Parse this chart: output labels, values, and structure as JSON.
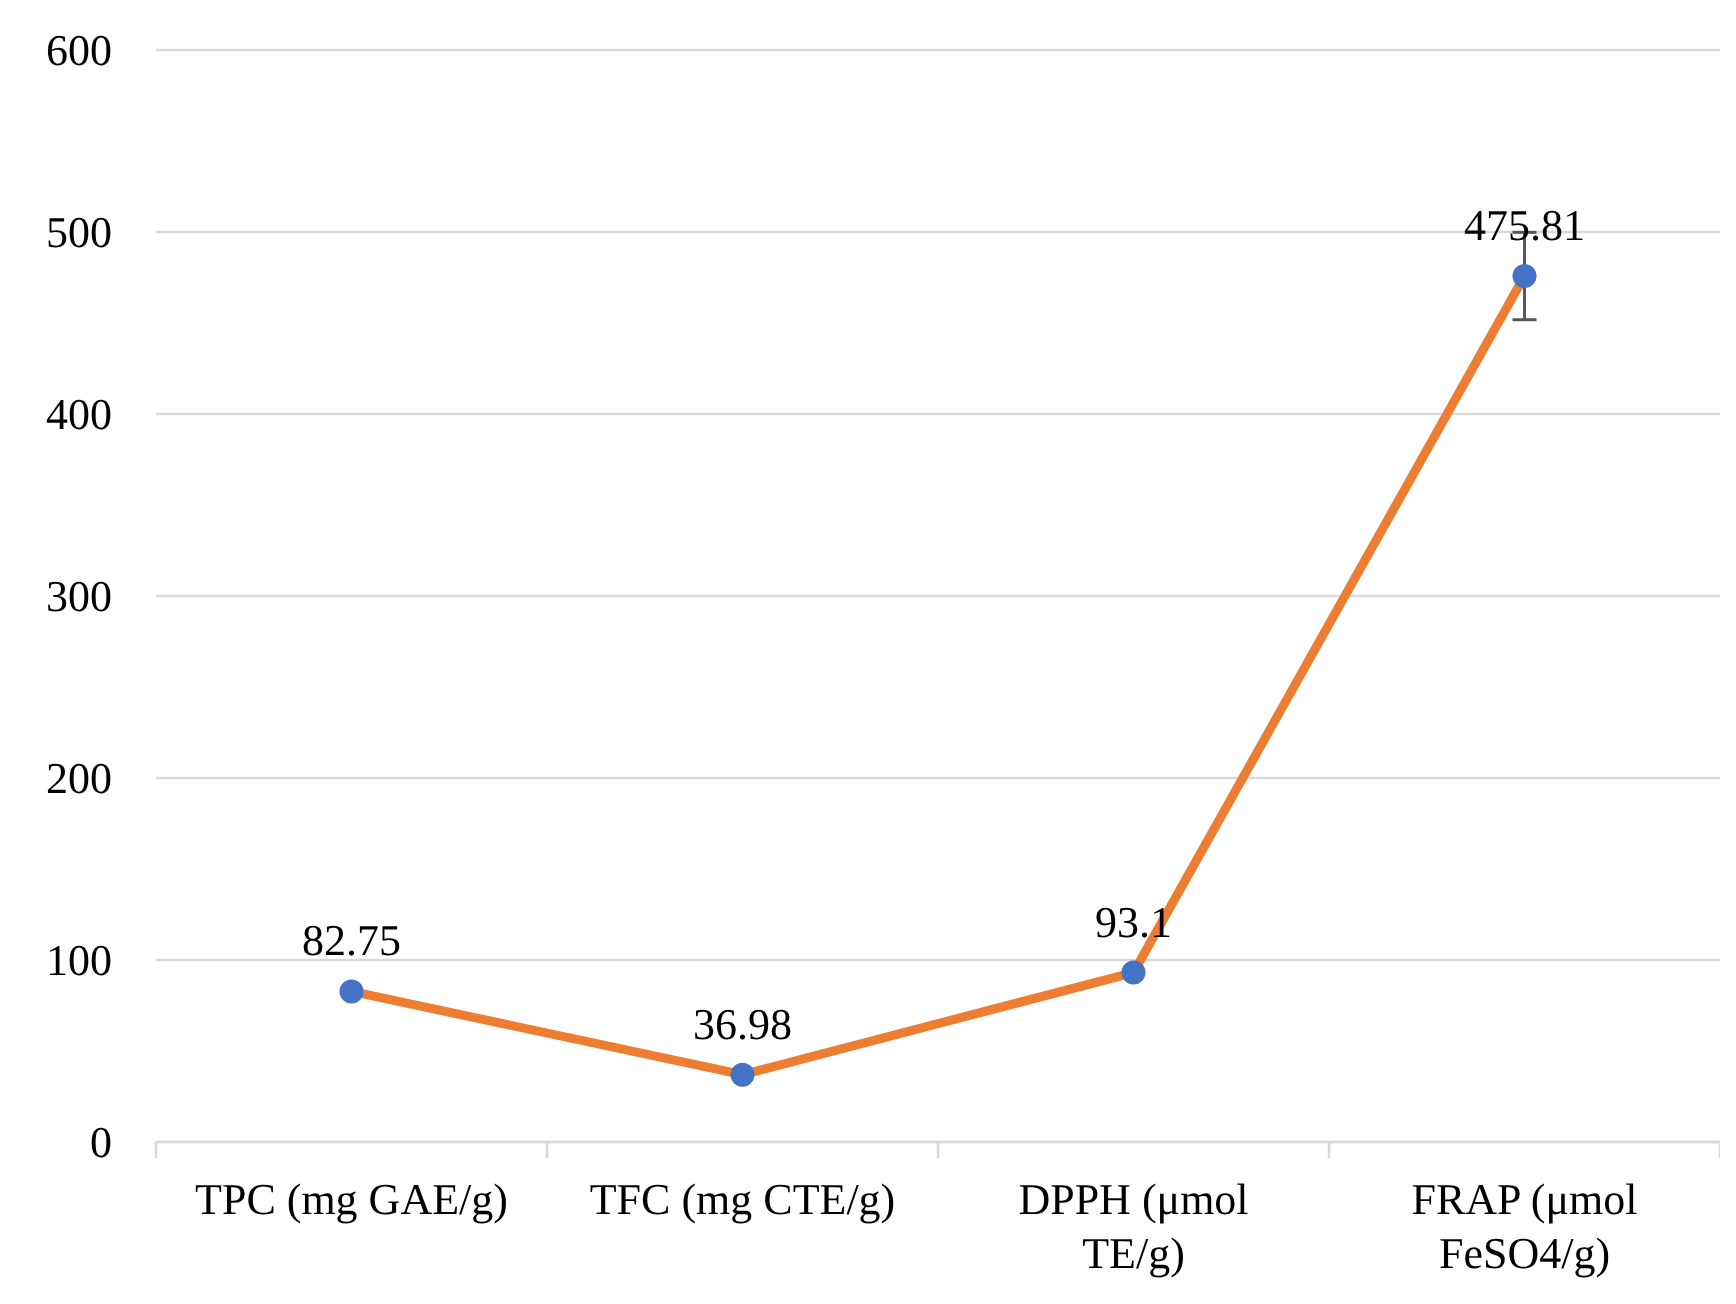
{
  "chart_data": {
    "type": "line",
    "categories": [
      "TPC (mg GAE/g)",
      "TFC (mg CTE/g)",
      "DPPH (μmol TE/g)",
      "FRAP (μmol FeSO4/g)"
    ],
    "series": [
      {
        "color": "#ed7d31",
        "colors": [
          "#4472c4",
          "#4472c4",
          "#4472c4",
          "#4472c4"
        ],
        "values": [
          82.75,
          36.98,
          93.1,
          475.81
        ],
        "errors": [
          null,
          null,
          null,
          24
        ]
      }
    ],
    "ylim": [
      0,
      600
    ],
    "yticks": [
      0,
      100,
      200,
      300,
      400,
      500,
      600
    ],
    "grid": "y",
    "marker": "circle",
    "line_style": "solid",
    "data_labels": true
  }
}
